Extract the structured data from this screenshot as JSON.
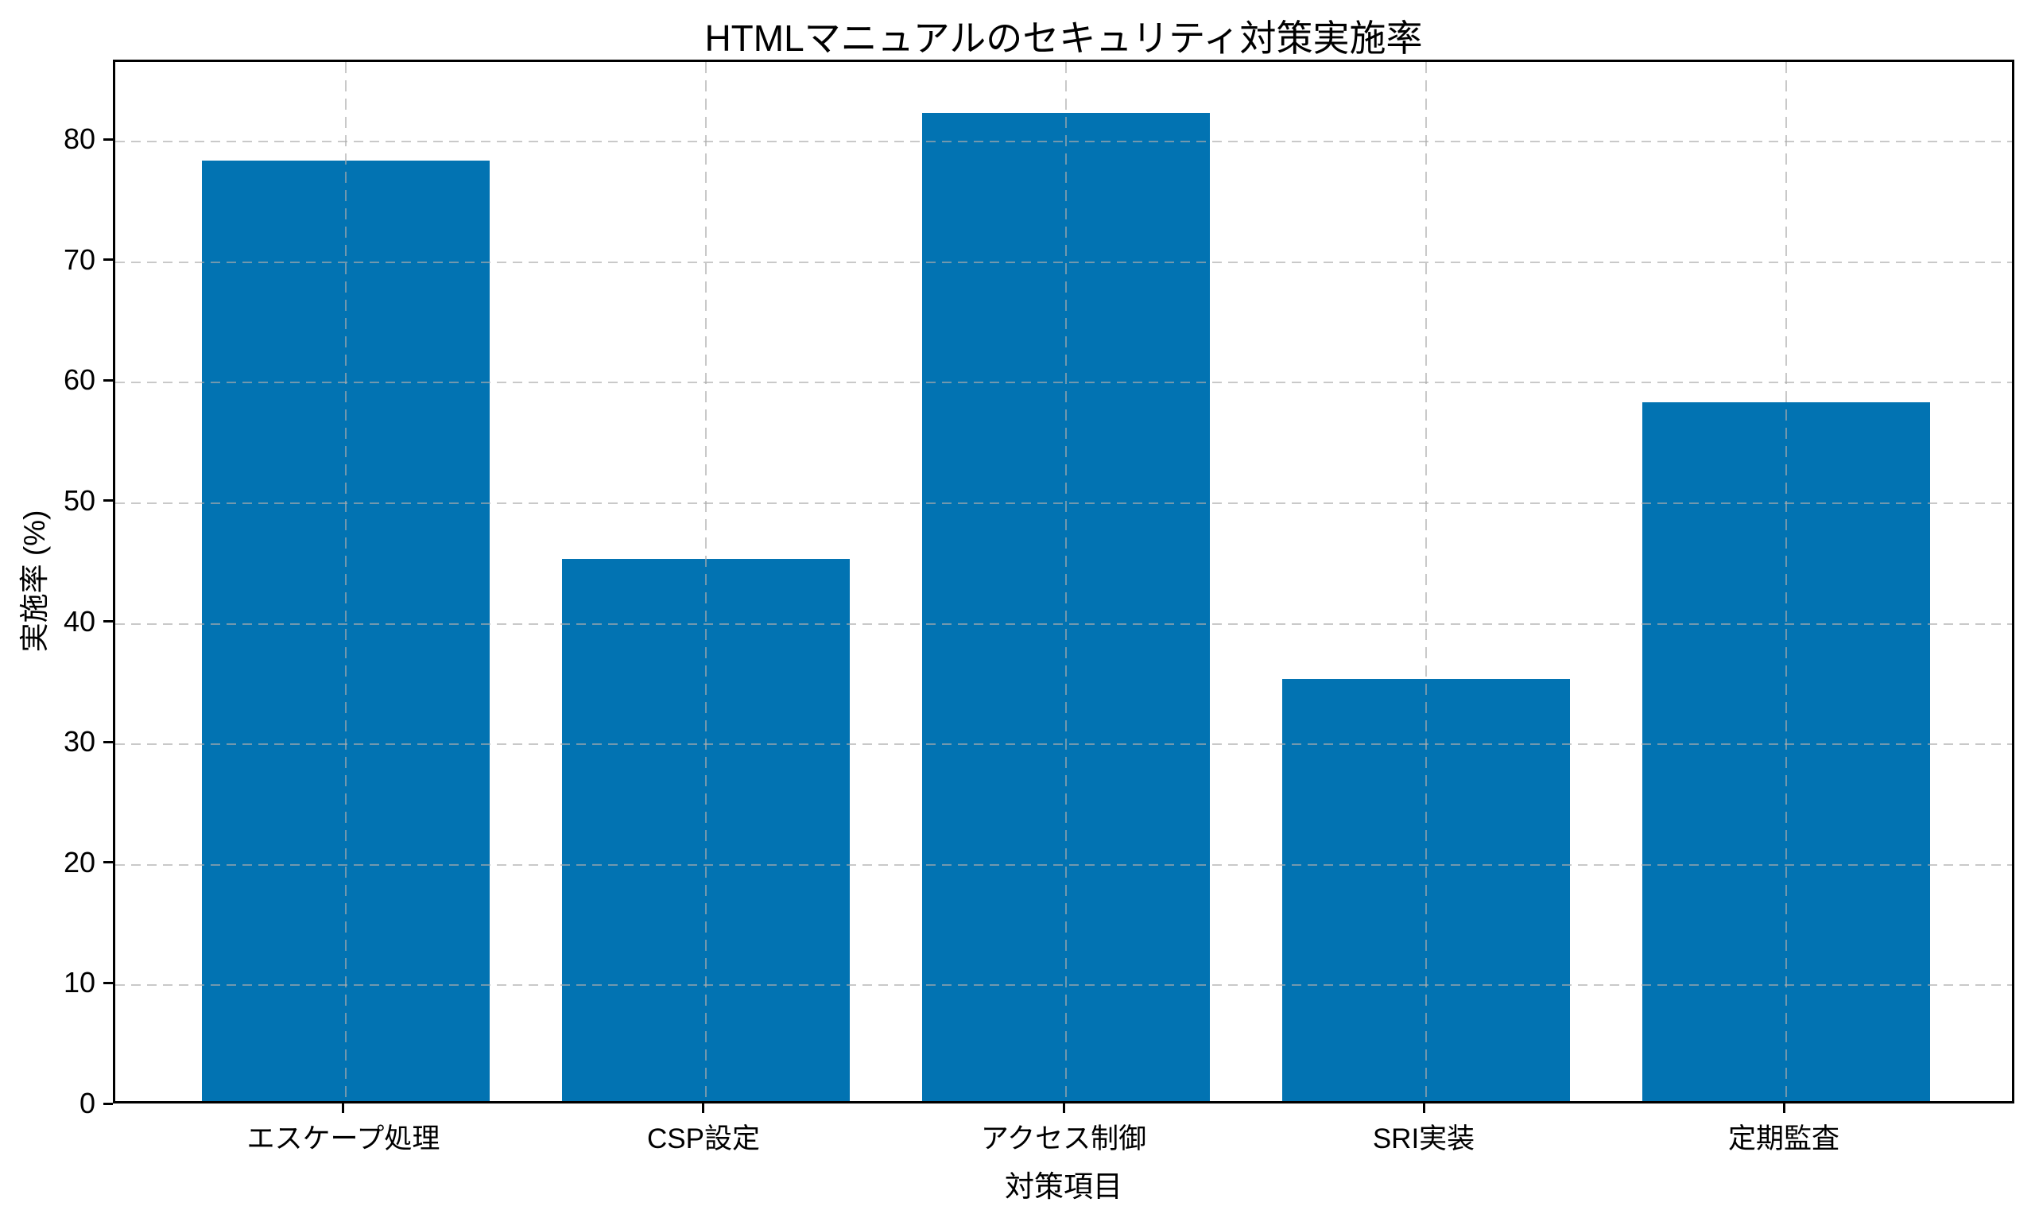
{
  "chart_data": {
    "type": "bar",
    "title": "HTMLマニュアルのセキュリティ対策実施率",
    "xlabel": "対策項目",
    "ylabel": "実施率 (%)",
    "categories": [
      "エスケープ処理",
      "CSP設定",
      "アクセス制御",
      "SRI実装",
      "定期監査"
    ],
    "values": [
      78,
      45,
      82,
      35,
      58
    ],
    "ylim": [
      0,
      86.6
    ],
    "yticks": [
      0,
      10,
      20,
      30,
      40,
      50,
      60,
      70,
      80
    ],
    "bar_color": "#0273b2",
    "spine_color": "#000000",
    "grid": true,
    "grid_style": "dashed",
    "grid_over_bars": true,
    "legend": "none",
    "background": "#ffffff"
  }
}
